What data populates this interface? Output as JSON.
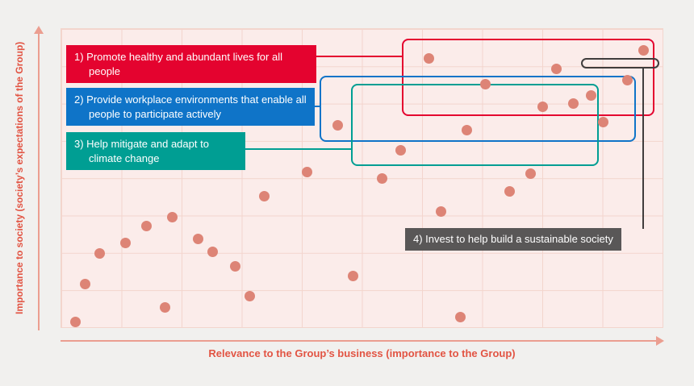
{
  "colors": {
    "background": "#f1f0ee",
    "plot_background": "#fbecea",
    "grid": "#f3d5cd",
    "dot": "#dd8476",
    "axis": "#eb9e90",
    "axis_text": "#e25443"
  },
  "chart_data": {
    "type": "scatter",
    "xlabel": "Relevance to the Group’s business (importance to the Group)",
    "ylabel": "Importance to society (society’s expectations of the Group)",
    "xlim": [
      0,
      10
    ],
    "ylim": [
      0,
      8
    ],
    "grid": true,
    "legend_position": "overlay-left",
    "point_color": "#dd8476",
    "points": [
      [
        6.11,
        7.22
      ],
      [
        9.69,
        7.42
      ],
      [
        8.23,
        6.92
      ],
      [
        7.05,
        6.51
      ],
      [
        9.42,
        6.62
      ],
      [
        8.01,
        5.92
      ],
      [
        8.52,
        6.01
      ],
      [
        8.81,
        6.21
      ],
      [
        4.6,
        5.41
      ],
      [
        6.74,
        5.28
      ],
      [
        9.01,
        5.51
      ],
      [
        5.64,
        4.74
      ],
      [
        4.09,
        4.17
      ],
      [
        5.33,
        3.98
      ],
      [
        7.8,
        4.11
      ],
      [
        7.45,
        3.65
      ],
      [
        3.37,
        3.52
      ],
      [
        6.31,
        3.11
      ],
      [
        1.84,
        2.96
      ],
      [
        1.41,
        2.72
      ],
      [
        2.28,
        2.36
      ],
      [
        1.07,
        2.27
      ],
      [
        0.64,
        1.99
      ],
      [
        2.51,
        2.03
      ],
      [
        2.89,
        1.64
      ],
      [
        4.85,
        1.38
      ],
      [
        0.39,
        1.15
      ],
      [
        3.13,
        0.84
      ],
      [
        1.72,
        0.52
      ],
      [
        0.23,
        0.15
      ],
      [
        6.64,
        0.28
      ]
    ],
    "regions": [
      {
        "name": "1) Promote healthy and abundant lives for all people",
        "color": "#e4032f",
        "x": [
          5.66,
          9.87
        ],
        "y": [
          5.66,
          7.74
        ],
        "radius": 8
      },
      {
        "name": "2) Provide workplace environments that enable all people to participate actively",
        "color": "#0f74c8",
        "x": [
          4.3,
          9.56
        ],
        "y": [
          4.97,
          6.75
        ],
        "radius": 8
      },
      {
        "name": "3) Help mitigate and adapt to climate change",
        "color": "#009e93",
        "x": [
          4.82,
          8.94
        ],
        "y": [
          4.32,
          6.53
        ],
        "radius": 8
      },
      {
        "name": "4) Invest to help build a sustainable society",
        "color": "#403d3d",
        "x": [
          8.64,
          9.95
        ],
        "y": [
          6.94,
          7.22
        ],
        "radius": 7
      }
    ]
  },
  "labels": [
    {
      "text": "1) Promote healthy and abundant lives for all people",
      "bg": "#e4032f"
    },
    {
      "text": "2) Provide workplace environments that enable all people to participate actively",
      "bg": "#0f74c8"
    },
    {
      "text": "3) Help mitigate and adapt to climate change",
      "bg": "#009e93"
    },
    {
      "text": "4) Invest to help build a sustainable society",
      "bg": "#595757"
    }
  ]
}
